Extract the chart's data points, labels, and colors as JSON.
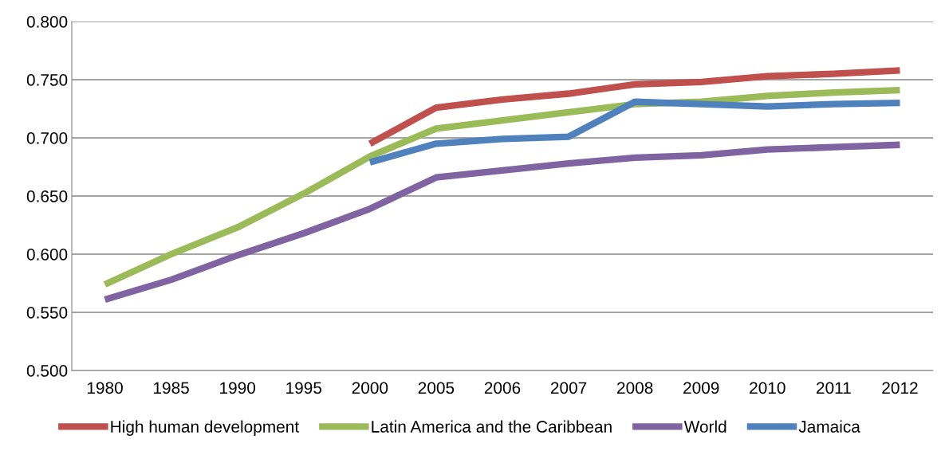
{
  "chart_data": {
    "type": "line",
    "categories": [
      "1980",
      "1985",
      "1990",
      "1995",
      "2000",
      "2005",
      "2006",
      "2007",
      "2008",
      "2009",
      "2010",
      "2011",
      "2012"
    ],
    "series": [
      {
        "name": "High human development",
        "color": "#c0504d",
        "values": [
          null,
          null,
          null,
          null,
          0.695,
          0.726,
          0.733,
          0.738,
          0.746,
          0.748,
          0.753,
          0.755,
          0.758
        ]
      },
      {
        "name": "Latin America and the Caribbean",
        "color": "#9bbb59",
        "values": [
          0.574,
          0.6,
          0.623,
          0.652,
          0.684,
          0.708,
          0.715,
          0.722,
          0.729,
          0.731,
          0.736,
          0.739,
          0.741
        ]
      },
      {
        "name": "World",
        "color": "#8064a2",
        "values": [
          0.561,
          0.578,
          0.599,
          0.618,
          0.639,
          0.666,
          0.672,
          0.678,
          0.683,
          0.685,
          0.69,
          0.692,
          0.694
        ]
      },
      {
        "name": "Jamaica",
        "color": "#4f81bd",
        "values": [
          null,
          null,
          null,
          null,
          0.679,
          0.695,
          0.699,
          0.701,
          0.731,
          0.729,
          0.727,
          0.729,
          0.73
        ]
      }
    ],
    "ylim": [
      0.5,
      0.8
    ],
    "yticks": [
      {
        "value": 0.5,
        "label": "0.500"
      },
      {
        "value": 0.55,
        "label": "0.550"
      },
      {
        "value": 0.6,
        "label": "0.600"
      },
      {
        "value": 0.65,
        "label": "0.650"
      },
      {
        "value": 0.7,
        "label": "0.700"
      },
      {
        "value": 0.75,
        "label": "0.750"
      },
      {
        "value": 0.8,
        "label": "0.800"
      }
    ],
    "grid": "y",
    "legend": "bottom",
    "marker": "none",
    "line_style": "solid"
  }
}
